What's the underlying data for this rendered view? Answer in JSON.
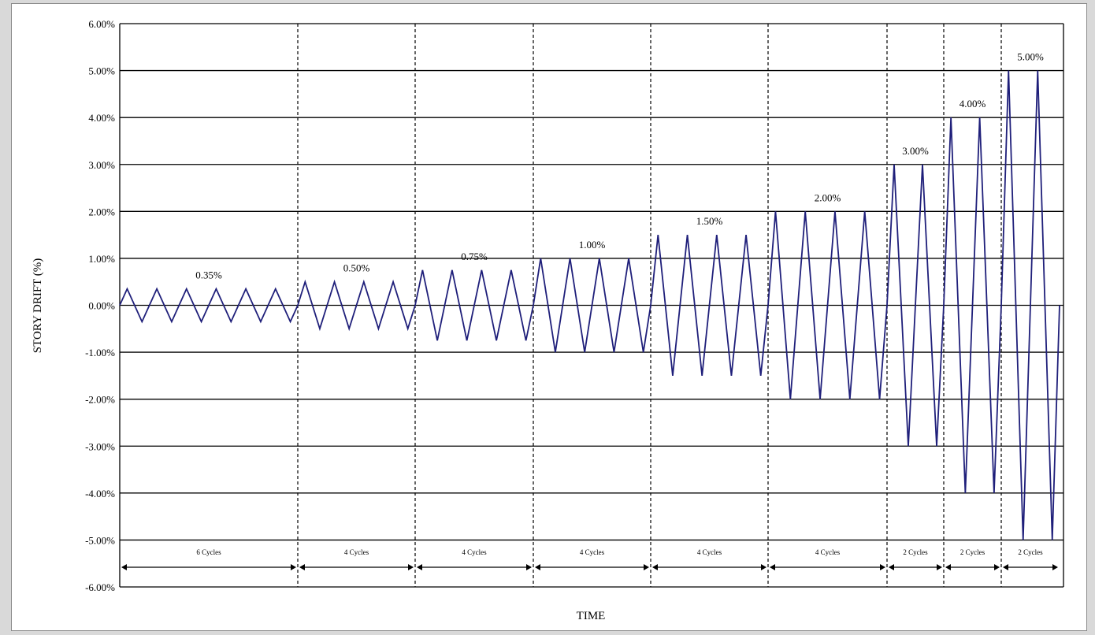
{
  "chart_data": {
    "type": "line",
    "title": "",
    "xlabel": "TIME",
    "ylabel": "STORY DRIFT (%)",
    "ylim": [
      -6,
      6
    ],
    "yticks": [
      "-6.00%",
      "-5.00%",
      "-4.00%",
      "-3.00%",
      "-2.00%",
      "-1.00%",
      "0.00%",
      "1.00%",
      "2.00%",
      "3.00%",
      "4.00%",
      "5.00%",
      "6.00%"
    ],
    "grid": true,
    "colors": {
      "line": "#1f1f7a",
      "grid": "#000000"
    },
    "segments": [
      {
        "amplitude": 0.35,
        "cycles": 6,
        "amplitude_label": "0.35%",
        "cycles_label": "6 Cycles"
      },
      {
        "amplitude": 0.5,
        "cycles": 4,
        "amplitude_label": "0.50%",
        "cycles_label": "4 Cycles"
      },
      {
        "amplitude": 0.75,
        "cycles": 4,
        "amplitude_label": "0.75%",
        "cycles_label": "4 Cycles"
      },
      {
        "amplitude": 1.0,
        "cycles": 4,
        "amplitude_label": "1.00%",
        "cycles_label": "4 Cycles"
      },
      {
        "amplitude": 1.5,
        "cycles": 4,
        "amplitude_label": "1.50%",
        "cycles_label": "4 Cycles"
      },
      {
        "amplitude": 2.0,
        "cycles": 4,
        "amplitude_label": "2.00%",
        "cycles_label": "4 Cycles"
      },
      {
        "amplitude": 3.0,
        "cycles": 2,
        "amplitude_label": "3.00%",
        "cycles_label": "2 Cycles"
      },
      {
        "amplitude": 4.0,
        "cycles": 2,
        "amplitude_label": "4.00%",
        "cycles_label": "2 Cycles"
      },
      {
        "amplitude": 5.0,
        "cycles": 2,
        "amplitude_label": "5.00%",
        "cycles_label": "2 Cycles"
      }
    ]
  }
}
